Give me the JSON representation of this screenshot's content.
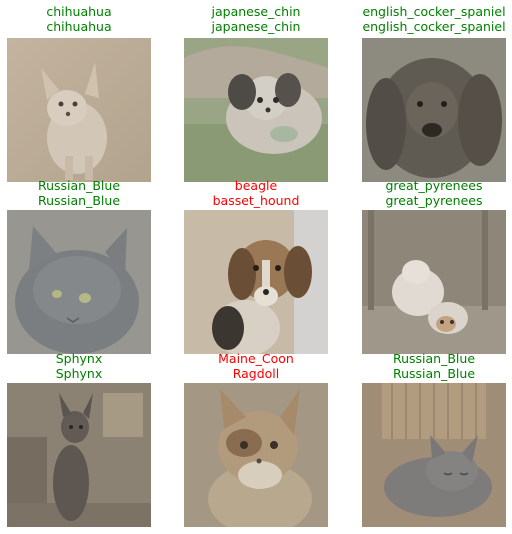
{
  "colors": {
    "correct": "#008000",
    "incorrect": "#ff0000"
  },
  "grid": [
    {
      "actual": "chihuahua",
      "predicted": "chihuahua",
      "correct": true,
      "subject": "chihuahua-dog-photo"
    },
    {
      "actual": "japanese_chin",
      "predicted": "japanese_chin",
      "correct": true,
      "subject": "japanese-chin-dog-photo"
    },
    {
      "actual": "english_cocker_spaniel",
      "predicted": "english_cocker_spaniel",
      "correct": true,
      "subject": "cocker-spaniel-dog-photo"
    },
    {
      "actual": "Russian_Blue",
      "predicted": "Russian_Blue",
      "correct": true,
      "subject": "russian-blue-cat-photo"
    },
    {
      "actual": "beagle",
      "predicted": "basset_hound",
      "correct": false,
      "subject": "beagle-dog-photo"
    },
    {
      "actual": "great_pyrenees",
      "predicted": "great_pyrenees",
      "correct": true,
      "subject": "great-pyrenees-dog-photo"
    },
    {
      "actual": "Sphynx",
      "predicted": "Sphynx",
      "correct": true,
      "subject": "sphynx-cat-photo"
    },
    {
      "actual": "Maine_Coon",
      "predicted": "Ragdoll",
      "correct": false,
      "subject": "maine-coon-cat-photo"
    },
    {
      "actual": "Russian_Blue",
      "predicted": "Russian_Blue",
      "correct": true,
      "subject": "russian-blue-cat-photo"
    }
  ]
}
